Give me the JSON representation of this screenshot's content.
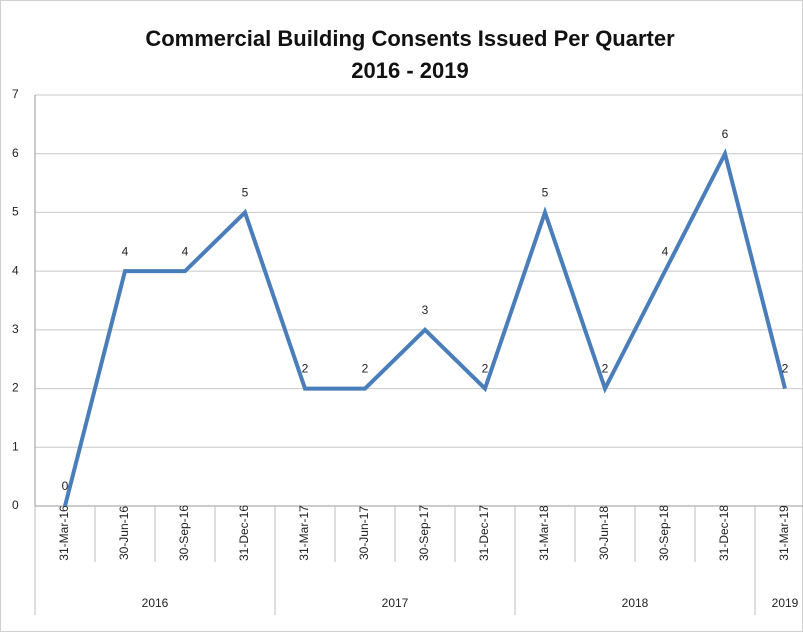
{
  "chart_data": {
    "type": "line",
    "title": "Commercial Building Consents Issued Per Quarter",
    "subtitle": "2016 - 2019",
    "categories": [
      "31-Mar-16",
      "30-Jun-16",
      "30-Sep-16",
      "31-Dec-16",
      "31-Mar-17",
      "30-Jun-17",
      "30-Sep-17",
      "31-Dec-17",
      "31-Mar-18",
      "30-Jun-18",
      "30-Sep-18",
      "31-Dec-18",
      "31-Mar-19"
    ],
    "category_groups": [
      {
        "label": "2016",
        "count": 4
      },
      {
        "label": "2017",
        "count": 4
      },
      {
        "label": "2018",
        "count": 4
      },
      {
        "label": "2019",
        "count": 1
      }
    ],
    "series": [
      {
        "color": "#4a7ebb",
        "values": [
          0,
          4,
          4,
          5,
          2,
          2,
          3,
          2,
          5,
          2,
          4,
          6,
          2
        ]
      }
    ],
    "ylim": [
      0,
      7
    ],
    "yticks": [
      0,
      1,
      2,
      3,
      4,
      5,
      6,
      7
    ],
    "grid": true
  }
}
